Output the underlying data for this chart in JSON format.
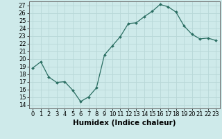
{
  "x": [
    0,
    1,
    2,
    3,
    4,
    5,
    6,
    7,
    8,
    9,
    10,
    11,
    12,
    13,
    14,
    15,
    16,
    17,
    18,
    19,
    20,
    21,
    22,
    23
  ],
  "y": [
    18.8,
    19.6,
    17.6,
    16.9,
    17.0,
    15.9,
    14.4,
    15.0,
    16.2,
    20.5,
    21.7,
    22.9,
    24.6,
    24.7,
    25.5,
    26.2,
    27.1,
    26.8,
    26.1,
    24.3,
    23.2,
    22.6,
    22.7,
    22.4
  ],
  "line_color": "#2a6e62",
  "marker": "D",
  "marker_size": 2.0,
  "bg_color": "#ceeaea",
  "grid_color": "#b8d8d8",
  "xlabel": "Humidex (Indice chaleur)",
  "xlim": [
    -0.5,
    23.5
  ],
  "ylim": [
    13.5,
    27.5
  ],
  "yticks": [
    14,
    15,
    16,
    17,
    18,
    19,
    20,
    21,
    22,
    23,
    24,
    25,
    26,
    27
  ],
  "xticks": [
    0,
    1,
    2,
    3,
    4,
    5,
    6,
    7,
    8,
    9,
    10,
    11,
    12,
    13,
    14,
    15,
    16,
    17,
    18,
    19,
    20,
    21,
    22,
    23
  ],
  "xtick_labels": [
    "0",
    "1",
    "2",
    "3",
    "4",
    "5",
    "6",
    "7",
    "8",
    "9",
    "10",
    "11",
    "12",
    "13",
    "14",
    "15",
    "16",
    "17",
    "18",
    "19",
    "20",
    "21",
    "22",
    "23"
  ],
  "label_fontsize": 7.5,
  "tick_fontsize": 6.0
}
